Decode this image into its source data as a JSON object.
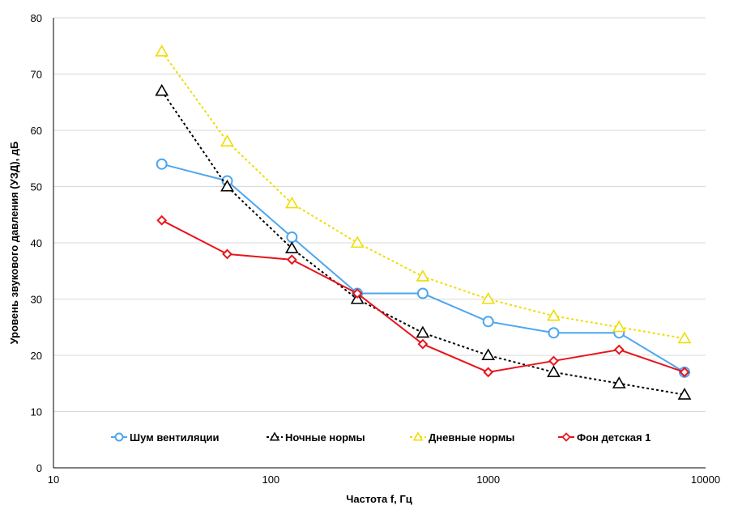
{
  "chart_data": {
    "type": "line",
    "xscale": "log",
    "xlim": [
      10,
      10000
    ],
    "ylim": [
      0,
      80
    ],
    "xticks": [
      10,
      100,
      1000,
      10000
    ],
    "xtick_labels": [
      "10",
      "100",
      "1000",
      "10000"
    ],
    "yticks": [
      0,
      10,
      20,
      30,
      40,
      50,
      60,
      70,
      80
    ],
    "ytick_labels": [
      "0",
      "10",
      "20",
      "30",
      "40",
      "50",
      "60",
      "70",
      "80"
    ],
    "xlabel": "Частота f, Гц",
    "ylabel": "Уровень звукового давления (УЗД), дБ",
    "grid": "horizontal",
    "legend_position": "bottom",
    "x": [
      31.5,
      63,
      125,
      250,
      500,
      1000,
      2000,
      4000,
      8000
    ],
    "series": [
      {
        "name": "Шум вентиляции",
        "values": [
          54,
          51,
          41,
          31,
          31,
          26,
          24,
          24,
          17
        ],
        "color": "#4da6ef",
        "marker": "circle",
        "dash": "solid"
      },
      {
        "name": "Ночные нормы",
        "values": [
          67,
          50,
          39,
          30,
          24,
          20,
          17,
          15,
          13
        ],
        "color": "#000000",
        "marker": "triangle",
        "dash": "dotted"
      },
      {
        "name": "Дневные нормы",
        "values": [
          74,
          58,
          47,
          40,
          34,
          30,
          27,
          25,
          23
        ],
        "color": "#f0dc00",
        "marker": "triangle",
        "dash": "dotted"
      },
      {
        "name": "Фон детская 1",
        "values": [
          44,
          38,
          37,
          31,
          22,
          17,
          19,
          21,
          17
        ],
        "color": "#e8141c",
        "marker": "diamond",
        "dash": "solid"
      }
    ]
  }
}
